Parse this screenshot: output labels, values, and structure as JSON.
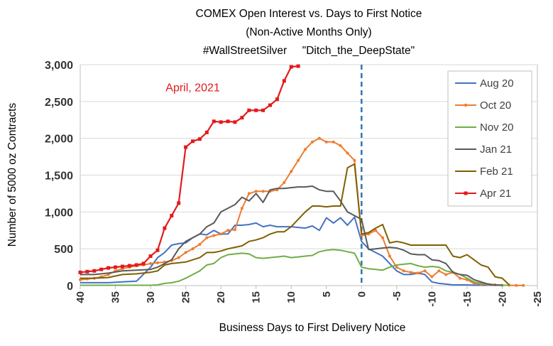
{
  "chart_data": {
    "type": "line",
    "title_lines": [
      "COMEX Open Interest vs. Days to First Notice",
      "(Non-Active Months Only)",
      "#WallStreetSilver     \"Ditch_the_DeepState\""
    ],
    "xlabel": "Business Days to First Delivery Notice",
    "ylabel": "Number of 5000 oz Contracts",
    "xlim": [
      40,
      -25
    ],
    "ylim": [
      0,
      3000
    ],
    "x_ticks": [
      40,
      35,
      30,
      25,
      20,
      15,
      10,
      5,
      0,
      -5,
      -10,
      -15,
      -20,
      -25
    ],
    "x_tick_labels": [
      "40",
      "35",
      "30",
      "25",
      "20",
      "15",
      "10",
      "5",
      "0",
      "-5",
      "-10",
      "-15",
      "-20",
      "-25"
    ],
    "y_ticks": [
      0,
      500,
      1000,
      1500,
      2000,
      2500,
      3000
    ],
    "y_tick_labels": [
      "0",
      "500",
      "1,000",
      "1,500",
      "2,000",
      "2,500",
      "3,000"
    ],
    "grid": true,
    "legend_position": "right",
    "reference_line": {
      "x": 0,
      "style": "dashed",
      "color": "#2e75b6"
    },
    "annotation": {
      "text": "April, 2021",
      "x": 24,
      "y": 2640
    },
    "series": [
      {
        "name": "Aug 20",
        "color": "#4472c4",
        "marker": "none",
        "x": [
          40,
          38,
          36,
          34,
          32,
          30,
          29,
          28,
          27,
          26,
          25,
          24,
          23,
          22,
          21,
          20,
          19,
          18,
          17,
          16,
          15,
          14,
          13,
          12,
          11,
          10,
          9,
          8,
          7,
          6,
          5,
          4,
          3,
          2,
          1,
          0,
          -1,
          -2,
          -3,
          -4,
          -5,
          -6,
          -7,
          -8,
          -9,
          -10,
          -11,
          -12,
          -13,
          -14,
          -15,
          -16,
          -17,
          -18,
          -19,
          -20
        ],
        "y": [
          40,
          40,
          40,
          50,
          60,
          250,
          380,
          450,
          550,
          570,
          580,
          650,
          700,
          690,
          750,
          700,
          700,
          820,
          820,
          830,
          850,
          800,
          820,
          800,
          800,
          800,
          790,
          780,
          810,
          750,
          920,
          850,
          920,
          820,
          930,
          600,
          500,
          450,
          400,
          300,
          200,
          150,
          150,
          170,
          150,
          50,
          30,
          20,
          10,
          10,
          10,
          5,
          5,
          5,
          5,
          5
        ]
      },
      {
        "name": "Oct 20",
        "color": "#ed7d31",
        "marker": "dot",
        "x": [
          40,
          39,
          38,
          37,
          36,
          35,
          34,
          33,
          32,
          31,
          30,
          29,
          28,
          27,
          26,
          25,
          24,
          23,
          22,
          21,
          20,
          19,
          18,
          17,
          16,
          15,
          14,
          13,
          12,
          11,
          10,
          9,
          8,
          7,
          6,
          5,
          4,
          3,
          2,
          1,
          0,
          -1,
          -2,
          -3,
          -4,
          -5,
          -6,
          -7,
          -8,
          -9,
          -10,
          -11,
          -12,
          -13,
          -14,
          -15,
          -16,
          -17,
          -18,
          -19,
          -20,
          -21,
          -22,
          -23
        ],
        "y": [
          80,
          90,
          100,
          120,
          150,
          200,
          230,
          250,
          270,
          280,
          300,
          310,
          320,
          340,
          380,
          450,
          500,
          560,
          650,
          680,
          700,
          750,
          760,
          1050,
          1250,
          1280,
          1280,
          1280,
          1300,
          1400,
          1550,
          1700,
          1850,
          1950,
          2000,
          1950,
          1950,
          1900,
          1800,
          1700,
          680,
          700,
          750,
          650,
          400,
          250,
          200,
          180,
          170,
          200,
          120,
          200,
          150,
          180,
          100,
          80,
          30,
          20,
          15,
          10,
          5,
          5,
          3,
          2
        ]
      },
      {
        "name": "Nov 20",
        "color": "#70ad47",
        "marker": "none",
        "x": [
          40,
          35,
          32,
          30,
          29,
          28,
          27,
          26,
          25,
          24,
          23,
          22,
          21,
          20,
          19,
          18,
          17,
          16,
          15,
          14,
          13,
          12,
          11,
          10,
          9,
          8,
          7,
          6,
          5,
          4,
          3,
          2,
          1,
          0,
          -1,
          -2,
          -3,
          -4,
          -5,
          -6,
          -7,
          -8,
          -9,
          -10,
          -11,
          -12,
          -13,
          -14,
          -15,
          -16,
          -17,
          -18,
          -19,
          -20,
          -21
        ],
        "y": [
          5,
          5,
          5,
          5,
          10,
          30,
          40,
          60,
          100,
          150,
          200,
          280,
          300,
          380,
          420,
          430,
          440,
          430,
          380,
          370,
          380,
          390,
          400,
          380,
          390,
          400,
          410,
          460,
          480,
          490,
          480,
          460,
          440,
          250,
          230,
          220,
          210,
          250,
          280,
          290,
          300,
          270,
          250,
          260,
          250,
          200,
          180,
          150,
          100,
          50,
          30,
          20,
          10,
          5,
          5
        ]
      },
      {
        "name": "Jan 21",
        "color": "#595959",
        "marker": "none",
        "x": [
          40,
          38,
          36,
          34,
          32,
          30,
          29,
          28,
          27,
          26,
          25,
          24,
          23,
          22,
          21,
          20,
          19,
          18,
          17,
          16,
          15,
          14,
          13,
          12,
          11,
          10,
          9,
          8,
          7,
          6,
          5,
          4,
          3,
          2,
          1,
          0,
          -1,
          -2,
          -3,
          -4,
          -5,
          -6,
          -7,
          -8,
          -9,
          -10,
          -11,
          -12,
          -13,
          -14,
          -15,
          -16,
          -17,
          -18,
          -19,
          -20
        ],
        "y": [
          150,
          150,
          170,
          200,
          210,
          220,
          250,
          300,
          350,
          500,
          600,
          650,
          700,
          800,
          850,
          1000,
          1050,
          1100,
          1200,
          1150,
          1250,
          1130,
          1300,
          1320,
          1320,
          1330,
          1340,
          1340,
          1350,
          1300,
          1280,
          1280,
          1150,
          1000,
          950,
          900,
          490,
          500,
          510,
          520,
          510,
          480,
          430,
          420,
          420,
          350,
          340,
          300,
          180,
          150,
          140,
          80,
          50,
          20,
          10,
          5
        ]
      },
      {
        "name": "Feb 21",
        "color": "#7f6000",
        "marker": "none",
        "x": [
          40,
          38,
          36,
          34,
          32,
          30,
          29,
          28,
          27,
          26,
          25,
          24,
          23,
          22,
          21,
          20,
          19,
          18,
          17,
          16,
          15,
          14,
          13,
          12,
          11,
          10,
          9,
          8,
          7,
          6,
          5,
          4,
          3,
          2,
          1,
          0,
          -1,
          -2,
          -3,
          -4,
          -5,
          -6,
          -7,
          -8,
          -9,
          -10,
          -11,
          -12,
          -13,
          -14,
          -15,
          -16,
          -17,
          -18,
          -19,
          -20,
          -21
        ],
        "y": [
          100,
          100,
          110,
          150,
          160,
          180,
          200,
          280,
          300,
          310,
          320,
          350,
          380,
          450,
          450,
          470,
          500,
          520,
          540,
          600,
          620,
          650,
          700,
          730,
          730,
          800,
          900,
          1000,
          1080,
          1080,
          1070,
          1080,
          1080,
          1600,
          1650,
          700,
          720,
          780,
          830,
          580,
          600,
          580,
          550,
          550,
          550,
          550,
          550,
          550,
          400,
          380,
          420,
          350,
          280,
          250,
          120,
          100,
          10
        ]
      },
      {
        "name": "Apr 21",
        "color": "#e31a1c",
        "marker": "square",
        "x": [
          40,
          39,
          38,
          37,
          36,
          35,
          34,
          33,
          32,
          31,
          30,
          29,
          28,
          27,
          26,
          25,
          24,
          23,
          22,
          21,
          20,
          19,
          18,
          17,
          16,
          15,
          14,
          13,
          12,
          11,
          10,
          9
        ],
        "y": [
          180,
          190,
          200,
          220,
          240,
          250,
          260,
          270,
          280,
          300,
          400,
          480,
          780,
          950,
          1120,
          1880,
          1960,
          1990,
          2080,
          2230,
          2220,
          2230,
          2220,
          2280,
          2380,
          2380,
          2380,
          2450,
          2530,
          2780,
          2970,
          2980
        ]
      }
    ]
  }
}
